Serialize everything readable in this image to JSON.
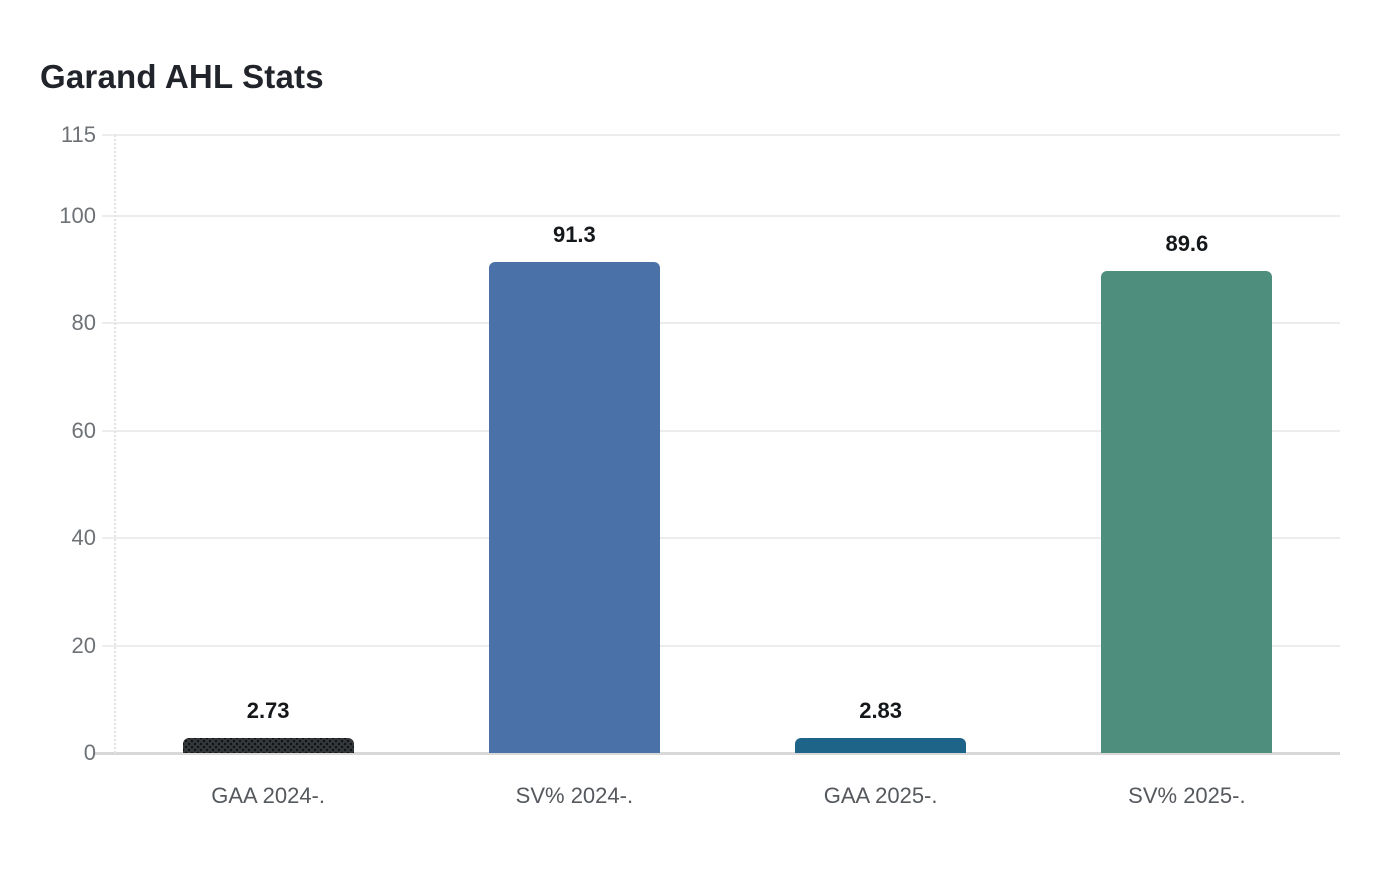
{
  "page": {
    "background_color": "#ffffff"
  },
  "chart_data": {
    "type": "bar",
    "title": "Garand AHL Stats",
    "categories": [
      "GAA 2024-.",
      "SV% 2024-.",
      "GAA 2025-.",
      "SV% 2025-."
    ],
    "values": [
      2.73,
      91.3,
      2.83,
      89.6
    ],
    "value_labels": [
      "2.73",
      "91.3",
      "2.83",
      "89.6"
    ],
    "bar_colors": [
      "#35393c",
      "#4a72a8",
      "#1e6488",
      "#4e8e7d"
    ],
    "bar_patterns": [
      "dots",
      "solid",
      "solid",
      "solid"
    ],
    "xlabel": "",
    "ylabel": "",
    "ylim": [
      0,
      115
    ],
    "yticks": [
      0,
      20,
      40,
      60,
      80,
      100,
      115
    ],
    "grid": "horizontal",
    "legend": "none",
    "colors": {
      "title_text": "#21252b",
      "y_tick_text": "#6e7276",
      "x_tick_text": "#55595d",
      "value_label_text": "#15181b",
      "gridline": "#ededed",
      "baseline": "#d8d8d8"
    }
  }
}
